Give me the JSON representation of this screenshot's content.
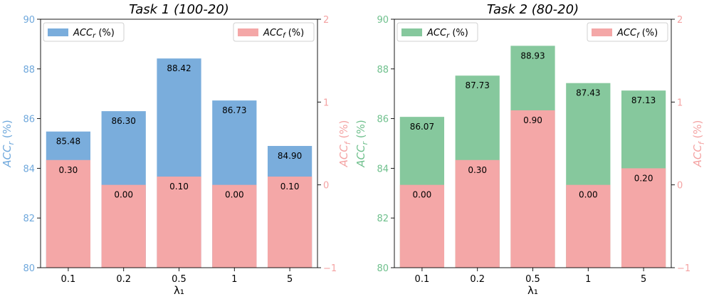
{
  "chart_data": [
    {
      "type": "bar",
      "title": "Task 1 (100-20)",
      "xlabel": "λ₁",
      "categories": [
        "0.1",
        "0.2",
        "0.5",
        "1",
        "5"
      ],
      "left_axis": {
        "label": "ACCr (%)",
        "label_main": "ACC",
        "label_sub": "r",
        "label_unit": " (%)",
        "ylim": [
          80,
          90
        ],
        "ticks": [
          "80",
          "82",
          "84",
          "86",
          "88",
          "90"
        ],
        "color": "#6fa8dc"
      },
      "right_axis": {
        "label": "ACCf (%)",
        "label_main": "ACC",
        "label_sub": "f",
        "label_unit": " (%)",
        "ylim": [
          -1,
          2
        ],
        "ticks": [
          "−1",
          "0",
          "1",
          "2"
        ],
        "color": "#f4a3a3"
      },
      "series": [
        {
          "name": "ACCr (%)",
          "axis": "left",
          "color": "#7aaddc",
          "values": [
            85.48,
            86.3,
            88.42,
            86.73,
            84.9
          ],
          "labels": [
            "85.48",
            "86.30",
            "88.42",
            "86.73",
            "84.90"
          ]
        },
        {
          "name": "ACCf (%)",
          "axis": "right",
          "color": "#f4a7a7",
          "values": [
            0.3,
            0.0,
            0.1,
            0.0,
            0.1
          ],
          "labels": [
            "0.30",
            "0.00",
            "0.10",
            "0.00",
            "0.10"
          ]
        }
      ],
      "legend": [
        "top-left",
        "top-right"
      ]
    },
    {
      "type": "bar",
      "title": "Task 2 (80-20)",
      "xlabel": "λ₁",
      "categories": [
        "0.1",
        "0.2",
        "0.5",
        "1",
        "5"
      ],
      "left_axis": {
        "label": "ACCr (%)",
        "label_main": "ACC",
        "label_sub": "r",
        "label_unit": " (%)",
        "ylim": [
          80,
          90
        ],
        "ticks": [
          "80",
          "82",
          "84",
          "86",
          "88",
          "90"
        ],
        "color": "#6fc08d"
      },
      "right_axis": {
        "label": "ACCf (%)",
        "label_main": "ACC",
        "label_sub": "f",
        "label_unit": " (%)",
        "ylim": [
          -1,
          2
        ],
        "ticks": [
          "−1",
          "0",
          "1",
          "2"
        ],
        "color": "#f4a3a3"
      },
      "series": [
        {
          "name": "ACCr (%)",
          "axis": "left",
          "color": "#86c89d",
          "values": [
            86.07,
            87.73,
            88.93,
            87.43,
            87.13
          ],
          "labels": [
            "86.07",
            "87.73",
            "88.93",
            "87.43",
            "87.13"
          ]
        },
        {
          "name": "ACCf (%)",
          "axis": "right",
          "color": "#f4a7a7",
          "values": [
            0.0,
            0.3,
            0.9,
            0.0,
            0.2
          ],
          "labels": [
            "0.00",
            "0.30",
            "0.90",
            "0.00",
            "0.20"
          ]
        }
      ],
      "legend": [
        "top-left",
        "top-right"
      ]
    }
  ]
}
